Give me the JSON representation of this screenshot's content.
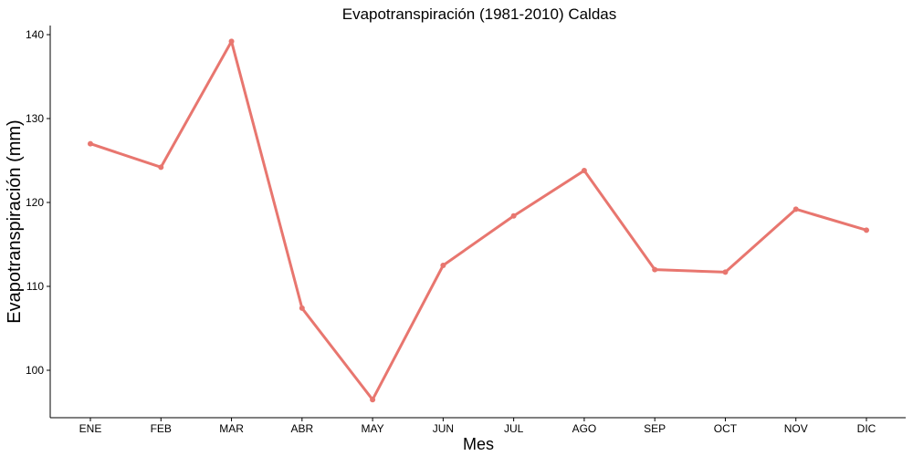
{
  "chart_data": {
    "type": "line",
    "title": "Evapotranspiración (1981-2010)  Caldas",
    "xlabel": "Mes",
    "ylabel": "Evapotranspiración (mm)",
    "categories": [
      "ENE",
      "FEB",
      "MAR",
      "ABR",
      "MAY",
      "JUN",
      "JUL",
      "AGO",
      "SEP",
      "OCT",
      "NOV",
      "DIC"
    ],
    "values": [
      127.0,
      124.2,
      139.2,
      107.4,
      96.5,
      112.5,
      118.4,
      123.8,
      112.0,
      111.7,
      119.2,
      116.7
    ],
    "ylim": [
      95,
      141
    ],
    "yticks": [
      100,
      110,
      120,
      130,
      140
    ],
    "grid": false,
    "legend": "none",
    "line_color": "#E8766F"
  }
}
